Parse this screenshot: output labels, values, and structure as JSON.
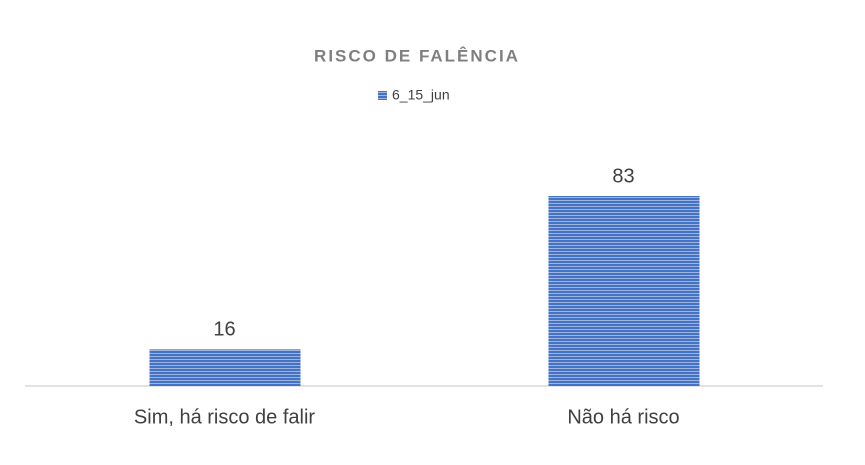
{
  "chart_data": {
    "type": "bar",
    "title": "RISCO DE FALÊNCIA",
    "categories": [
      "Sim, há risco de falir",
      "Não há risco"
    ],
    "series": [
      {
        "name": "6_15_jun",
        "color": "#4472c4",
        "values": [
          16,
          83
        ]
      }
    ],
    "legend": "top"
  }
}
